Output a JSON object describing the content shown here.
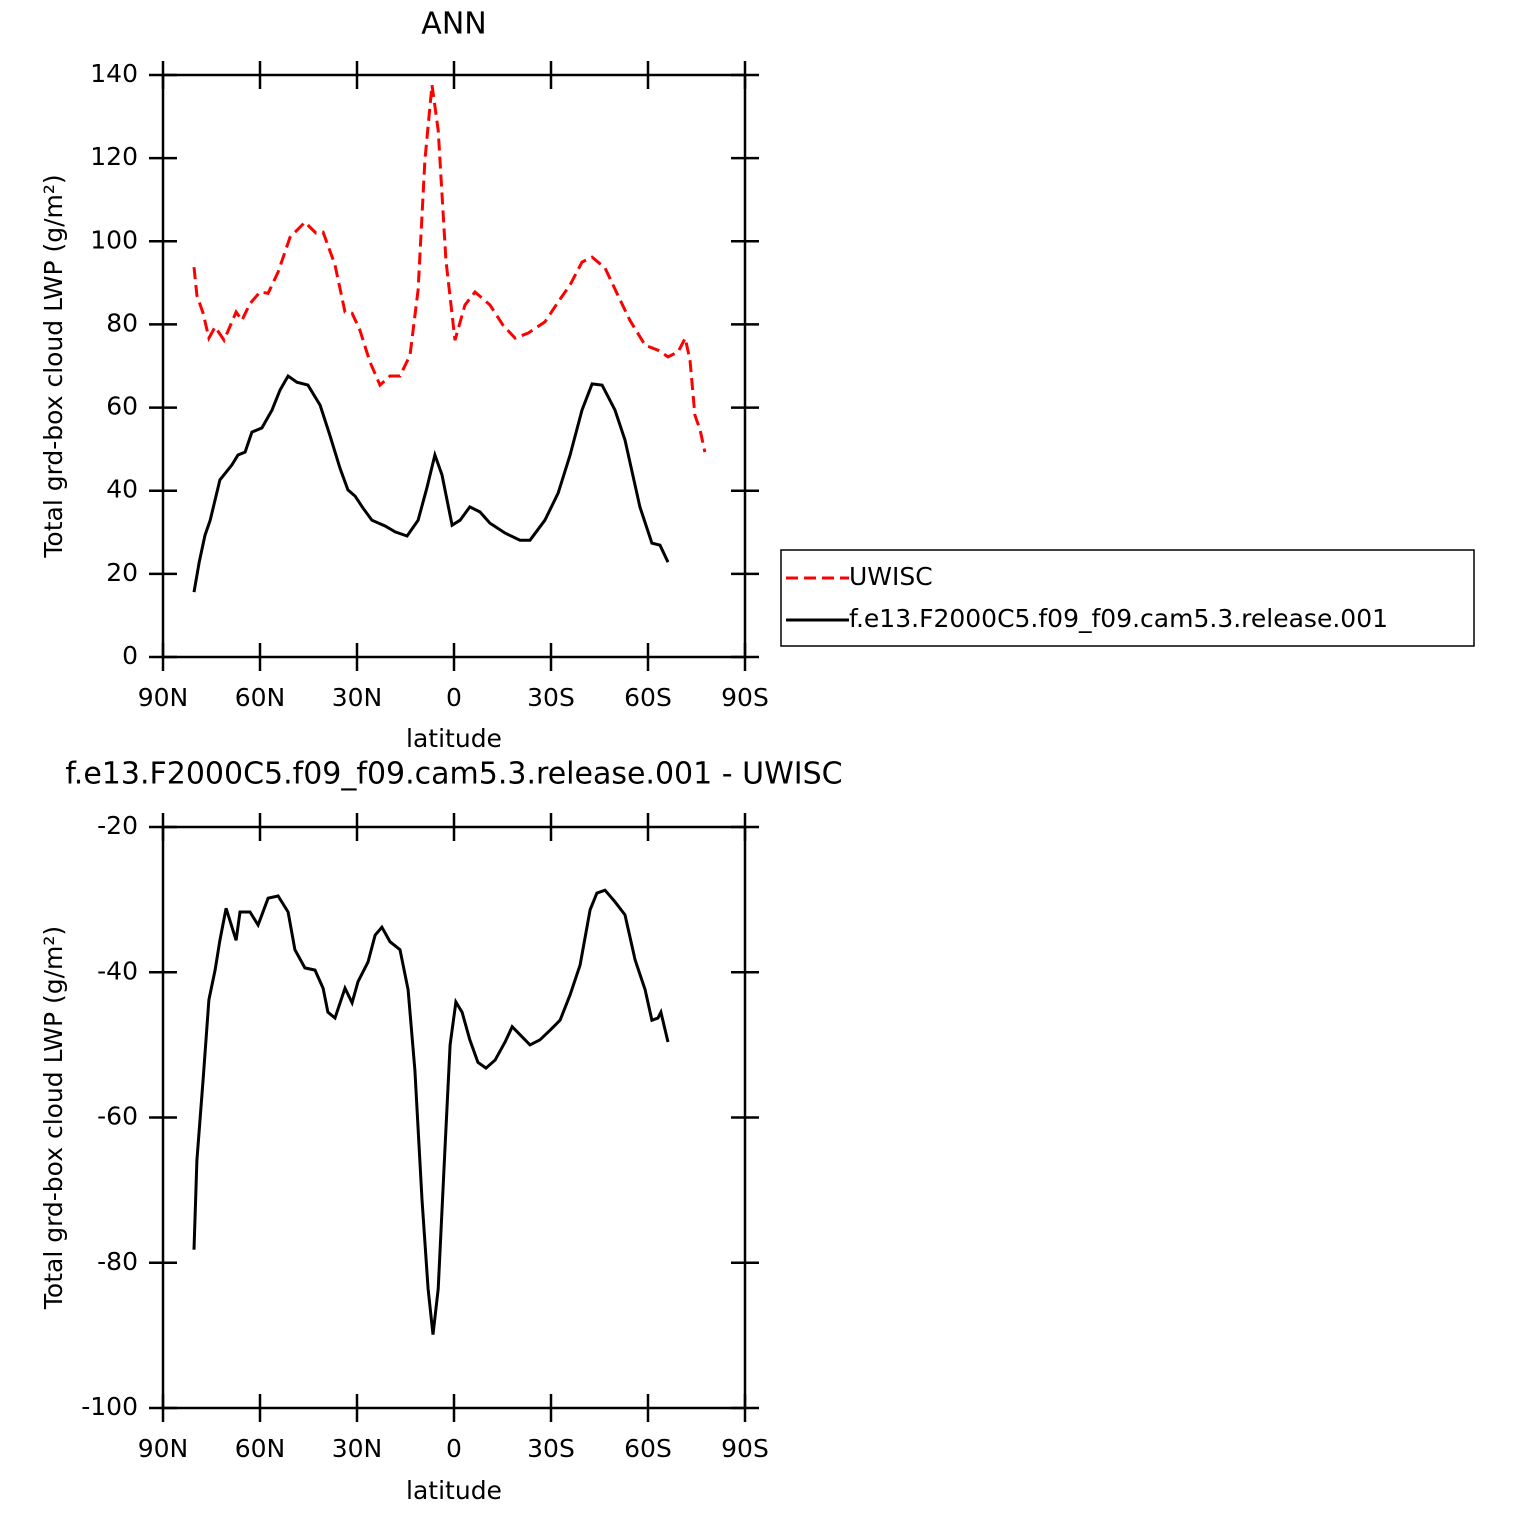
{
  "chart_data": [
    {
      "type": "line",
      "title": "ANN",
      "x_label": "latitude",
      "y_label": "Total grd-box cloud LWP (g/m²)",
      "xlim": [
        90,
        -90
      ],
      "xticks": [
        {
          "value": 90,
          "label": "90N"
        },
        {
          "value": 60,
          "label": "60N"
        },
        {
          "value": 30,
          "label": "30N"
        },
        0,
        {
          "value": -30,
          "label": "30S"
        },
        {
          "value": -60,
          "label": "60S"
        },
        {
          "value": -90,
          "label": "90S"
        }
      ],
      "ylim": [
        0,
        140
      ],
      "yticks": [
        0,
        20,
        40,
        60,
        80,
        100,
        120,
        140
      ],
      "legend": "right",
      "series": [
        {
          "name": "UWISC",
          "color": "#ff0000",
          "dash": true,
          "x": [
            80.4,
            79.5,
            77.6,
            75.8,
            73.9,
            71.1,
            67.4,
            65.6,
            63.1,
            60,
            57.5,
            54.4,
            50.7,
            46.1,
            42.7,
            40.5,
            36.8,
            33.7,
            31.5,
            29.1,
            26,
            22.9,
            19.8,
            16.7,
            13.6,
            11.1,
            9,
            6.8,
            4.9,
            2.5,
            -0.3,
            -3.4,
            -6.5,
            -11.1,
            -15.2,
            -18.9,
            -22.9,
            -28.1,
            -32.2,
            -35.9,
            -39.6,
            -42.7,
            -46.7,
            -50.7,
            -54.4,
            -59.1,
            -63.1,
            -66.2,
            -69.3,
            -71.5,
            -73,
            -74.5,
            -76.1,
            -77.6
          ],
          "values": [
            93.8,
            87,
            82.7,
            76.7,
            79.4,
            76.2,
            83,
            81,
            85,
            87.8,
            87.5,
            92.6,
            101,
            104.6,
            102,
            102.2,
            94.3,
            83,
            82.7,
            78.6,
            71,
            65.4,
            67.6,
            67.6,
            72.6,
            88.3,
            119.5,
            137.6,
            126.7,
            95.5,
            76.2,
            84.7,
            87.8,
            84.7,
            79.8,
            76.7,
            77.9,
            80.6,
            85.4,
            89.5,
            95,
            96.2,
            93.6,
            87,
            81,
            75,
            73.8,
            72.2,
            73.4,
            76.7,
            71.4,
            58.2,
            54.6,
            49.3
          ]
        },
        {
          "name": "f.e13.F2000C5.f09_f09.cam5.3.release.001",
          "color": "#000000",
          "dash": false,
          "x": [
            80.4,
            78.8,
            77,
            75.4,
            72.4,
            68.7,
            66.8,
            64.6,
            62.5,
            59.4,
            56.3,
            53.8,
            51.3,
            48.6,
            45.2,
            41.4,
            38.4,
            35.3,
            32.8,
            30.6,
            28.1,
            25.4,
            21.3,
            18.2,
            14.5,
            11.1,
            8.4,
            5.9,
            3.7,
            0.6,
            -1.9,
            -4.9,
            -8,
            -11.1,
            -15.8,
            -20.4,
            -23.5,
            -28.1,
            -32.2,
            -35.9,
            -39.6,
            -42.7,
            -45.8,
            -49.8,
            -52.9,
            -57.5,
            -61.2,
            -63.7,
            -66.2
          ],
          "values": [
            15.6,
            22.8,
            29.3,
            32.9,
            42.6,
            46.2,
            48.6,
            49.3,
            54.1,
            55.1,
            59.4,
            64.2,
            67.6,
            66.1,
            65.4,
            60.6,
            53.4,
            45.5,
            40.2,
            38.7,
            35.8,
            32.9,
            31.5,
            30.1,
            29.1,
            32.9,
            40.6,
            48.6,
            43.8,
            31.7,
            32.9,
            36.1,
            34.9,
            32.2,
            29.8,
            28.1,
            28.1,
            32.9,
            39.4,
            48.6,
            59.4,
            65.7,
            65.4,
            59.4,
            52.2,
            36.1,
            27.4,
            26.9,
            22.8
          ]
        }
      ]
    },
    {
      "type": "line",
      "title": "f.e13.F2000C5.f09_f09.cam5.3.release.001  -  UWISC",
      "x_label": "latitude",
      "y_label": "Total grd-box cloud LWP (g/m²)",
      "xlim": [
        90,
        -90
      ],
      "xticks": [
        {
          "value": 90,
          "label": "90N"
        },
        {
          "value": 60,
          "label": "60N"
        },
        {
          "value": 30,
          "label": "30N"
        },
        0,
        {
          "value": -30,
          "label": "30S"
        },
        {
          "value": -60,
          "label": "60S"
        },
        {
          "value": -90,
          "label": "90S"
        }
      ],
      "ylim": [
        -100,
        -20
      ],
      "yticks": [
        -100,
        -80,
        -60,
        -40,
        -20
      ],
      "series": [
        {
          "color": "#000000",
          "dash": false,
          "x": [
            80.4,
            79.5,
            77.6,
            75.8,
            73.9,
            72.4,
            70.5,
            67.4,
            66.2,
            63.1,
            60.6,
            57.5,
            54.4,
            51.3,
            49.2,
            46.1,
            43,
            40.5,
            39,
            36.8,
            33.7,
            31.5,
            29.7,
            26.6,
            24.4,
            22.3,
            19.8,
            16.7,
            14.2,
            12.1,
            9.9,
            8,
            6.5,
            4.9,
            2.8,
            1.2,
            -0.6,
            -2.5,
            -4.9,
            -7.4,
            -9.9,
            -12.7,
            -15.8,
            -18,
            -20.4,
            -23.5,
            -26.6,
            -29.7,
            -32.8,
            -35.9,
            -39,
            -42.1,
            -44.2,
            -46.7,
            -49.8,
            -52.9,
            -56,
            -59.1,
            -61.2,
            -63.1,
            -64,
            -66.2
          ],
          "values": [
            -78.2,
            -65.9,
            -54.8,
            -43.8,
            -39.7,
            -35.6,
            -31.2,
            -35.6,
            -31.7,
            -31.7,
            -33.5,
            -29.8,
            -29.5,
            -31.7,
            -36.9,
            -39.4,
            -39.7,
            -42.2,
            -45.5,
            -46.3,
            -42.2,
            -44.2,
            -41.3,
            -38.6,
            -34.9,
            -33.8,
            -35.8,
            -36.9,
            -42.4,
            -53.5,
            -71.3,
            -83.6,
            -89.9,
            -83.6,
            -64.5,
            -50,
            -44.1,
            -45.5,
            -49.3,
            -52.4,
            -53.2,
            -52.1,
            -49.6,
            -47.5,
            -48.6,
            -50,
            -49.3,
            -48,
            -46.6,
            -43.1,
            -39,
            -31.4,
            -29.1,
            -28.7,
            -30.3,
            -32.1,
            -38.3,
            -42.4,
            -46.6,
            -46.3,
            -45.5,
            -49.6
          ]
        }
      ]
    }
  ]
}
